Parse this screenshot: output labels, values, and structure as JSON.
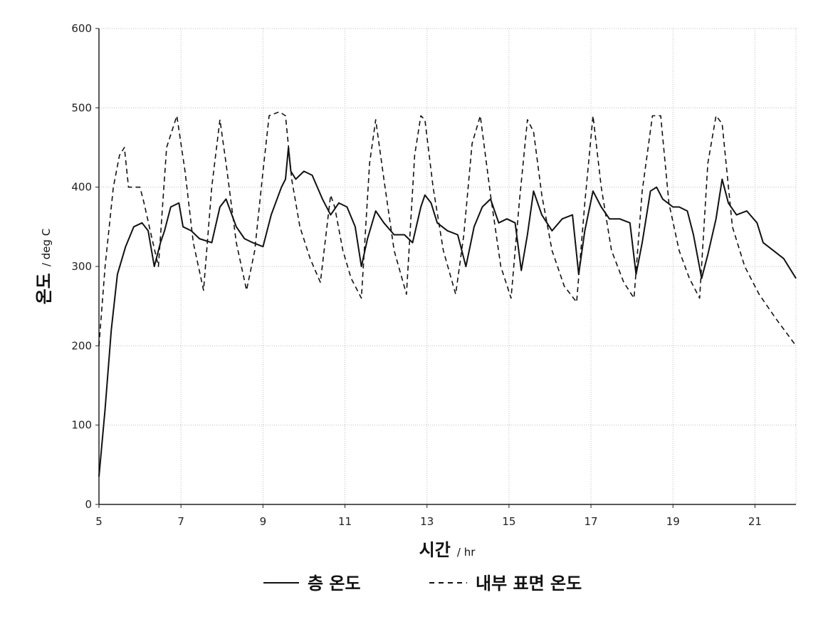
{
  "chart_data": {
    "type": "line",
    "xlabel": "시간",
    "xlabel_unit": "/ hr",
    "ylabel": "온도",
    "ylabel_unit": "/ deg C",
    "xlim": [
      5,
      22
    ],
    "ylim": [
      0,
      600
    ],
    "xticks": [
      5,
      7,
      9,
      11,
      13,
      15,
      17,
      19,
      21
    ],
    "yticks": [
      0,
      100,
      200,
      300,
      400,
      500,
      600
    ],
    "grid": true,
    "legend_position": "bottom",
    "series": [
      {
        "name": "층 온도",
        "style": "solid",
        "color": "#111111",
        "x": [
          5.0,
          5.15,
          5.3,
          5.45,
          5.65,
          5.85,
          6.05,
          6.2,
          6.35,
          6.5,
          6.6,
          6.75,
          6.95,
          7.05,
          7.25,
          7.45,
          7.75,
          7.95,
          8.1,
          8.35,
          8.55,
          8.75,
          9.0,
          9.2,
          9.45,
          9.55,
          9.62,
          9.68,
          9.8,
          10.0,
          10.2,
          10.45,
          10.65,
          10.85,
          11.05,
          11.25,
          11.4,
          11.55,
          11.75,
          11.95,
          12.2,
          12.45,
          12.65,
          12.85,
          12.95,
          13.1,
          13.25,
          13.5,
          13.75,
          13.95,
          14.15,
          14.35,
          14.55,
          14.75,
          14.95,
          15.15,
          15.3,
          15.45,
          15.6,
          15.8,
          16.05,
          16.3,
          16.55,
          16.7,
          16.85,
          17.05,
          17.25,
          17.45,
          17.7,
          17.95,
          18.1,
          18.25,
          18.45,
          18.6,
          18.75,
          19.0,
          19.15,
          19.35,
          19.5,
          19.7,
          19.85,
          20.05,
          20.2,
          20.35,
          20.55,
          20.8,
          21.05,
          21.2,
          21.45,
          21.7,
          22.0
        ],
        "values": [
          35,
          120,
          220,
          290,
          325,
          350,
          355,
          345,
          300,
          330,
          345,
          375,
          380,
          350,
          345,
          335,
          330,
          375,
          385,
          350,
          335,
          330,
          325,
          365,
          400,
          410,
          450,
          420,
          410,
          420,
          415,
          385,
          365,
          380,
          375,
          350,
          300,
          335,
          370,
          355,
          340,
          340,
          330,
          375,
          390,
          380,
          355,
          345,
          340,
          300,
          350,
          375,
          385,
          355,
          360,
          355,
          295,
          340,
          395,
          365,
          345,
          360,
          365,
          290,
          345,
          395,
          375,
          360,
          360,
          355,
          290,
          330,
          395,
          400,
          385,
          375,
          375,
          370,
          340,
          285,
          315,
          360,
          410,
          380,
          365,
          370,
          355,
          330,
          320,
          310,
          285
        ]
      },
      {
        "name": "내부 표면 온도",
        "style": "dashed",
        "color": "#111111",
        "x": [
          5.0,
          5.15,
          5.35,
          5.5,
          5.62,
          5.72,
          6.0,
          6.1,
          6.25,
          6.45,
          6.65,
          6.9,
          7.1,
          7.3,
          7.55,
          7.75,
          7.95,
          8.1,
          8.35,
          8.6,
          8.8,
          9.0,
          9.15,
          9.4,
          9.55,
          9.7,
          9.9,
          10.15,
          10.4,
          10.65,
          10.75,
          10.95,
          11.15,
          11.4,
          11.6,
          11.75,
          11.95,
          12.2,
          12.5,
          12.7,
          12.85,
          12.95,
          13.15,
          13.4,
          13.7,
          13.9,
          14.1,
          14.3,
          14.55,
          14.8,
          15.05,
          15.25,
          15.45,
          15.6,
          15.8,
          16.05,
          16.35,
          16.65,
          16.85,
          17.05,
          17.25,
          17.5,
          17.8,
          18.05,
          18.25,
          18.5,
          18.7,
          18.9,
          19.15,
          19.4,
          19.65,
          19.85,
          20.05,
          20.2,
          20.45,
          20.75,
          21.1,
          21.5,
          22.0
        ],
        "values": [
          200,
          300,
          400,
          440,
          450,
          400,
          400,
          380,
          345,
          300,
          450,
          490,
          420,
          330,
          270,
          400,
          485,
          430,
          330,
          270,
          320,
          420,
          490,
          495,
          490,
          410,
          350,
          310,
          280,
          390,
          375,
          320,
          285,
          260,
          430,
          485,
          410,
          320,
          265,
          440,
          490,
          485,
          400,
          320,
          265,
          340,
          455,
          490,
          390,
          300,
          260,
          380,
          485,
          470,
          390,
          320,
          275,
          255,
          380,
          490,
          400,
          320,
          280,
          260,
          395,
          490,
          490,
          380,
          320,
          285,
          260,
          430,
          490,
          480,
          350,
          300,
          265,
          235,
          200
        ]
      }
    ]
  }
}
